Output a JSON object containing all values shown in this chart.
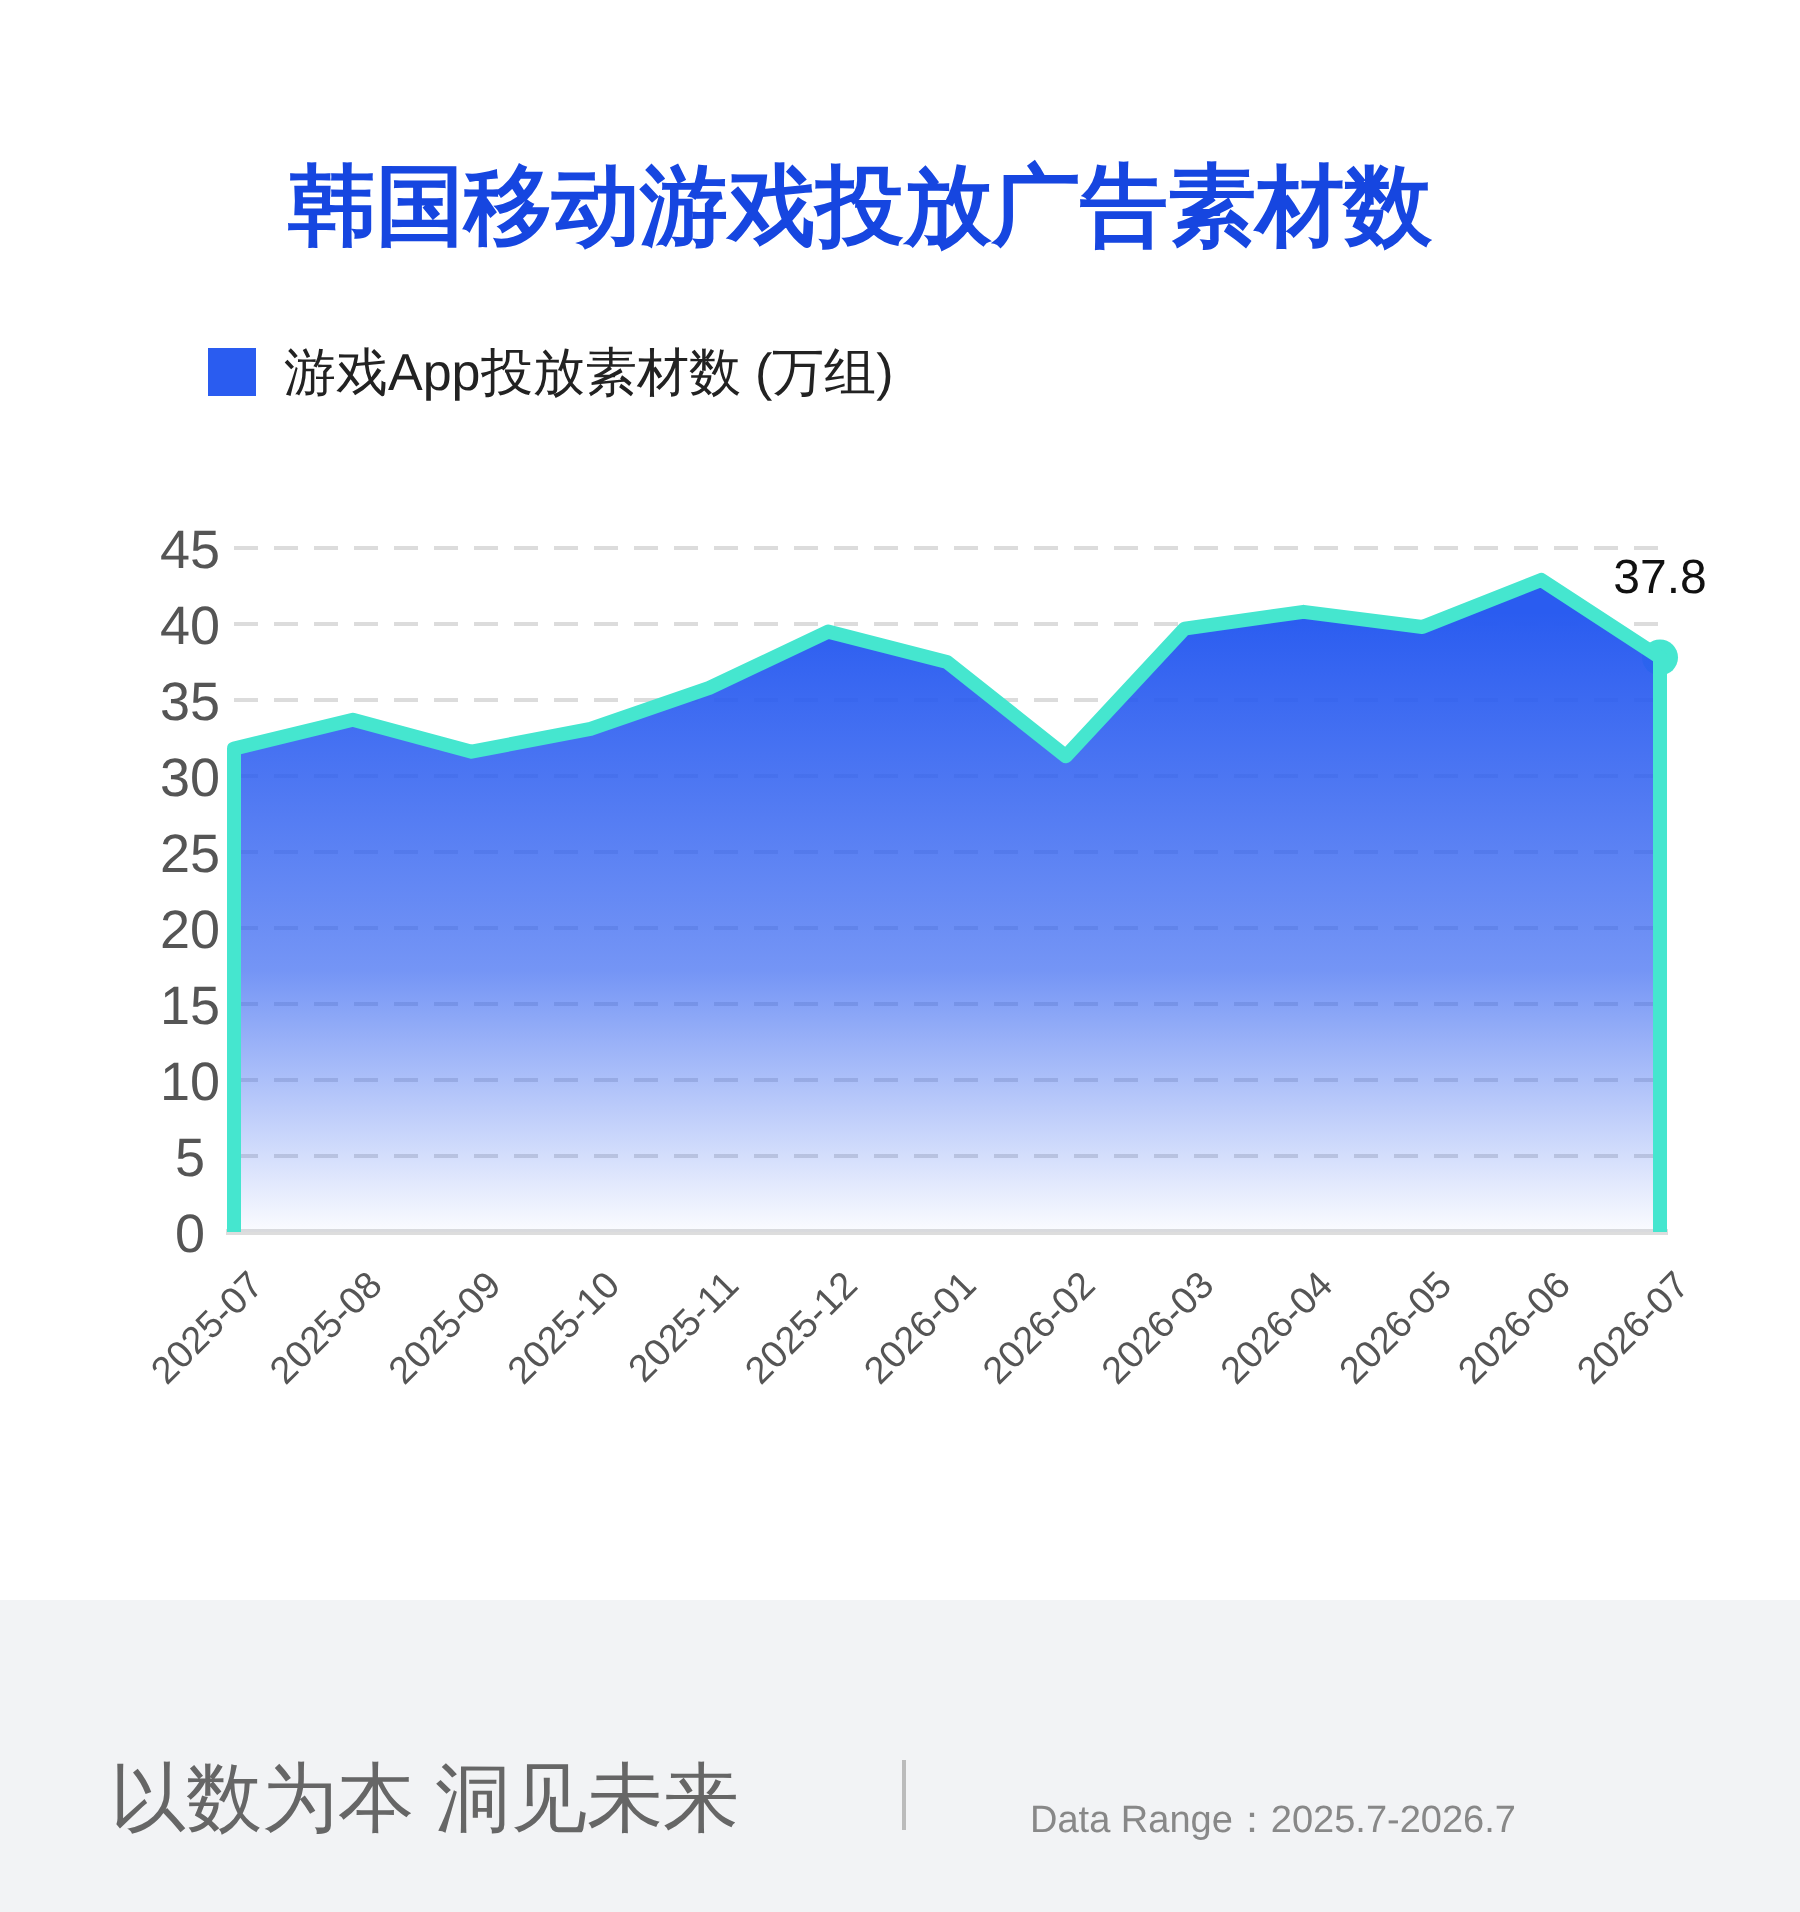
{
  "chart_data": {
    "type": "area",
    "title": "韩国移动游戏投放广告素材数",
    "categories": [
      "2025-07",
      "2025-08",
      "2025-09",
      "2025-10",
      "2025-11",
      "2025-12",
      "2026-01",
      "2026-02",
      "2026-03",
      "2026-04",
      "2026-05",
      "2026-06",
      "2026-07"
    ],
    "series": [
      {
        "name": "游戏App投放素材数 (万组)",
        "color": "#2a5cf0",
        "values": [
          31.8,
          33.7,
          31.6,
          33.1,
          35.8,
          39.5,
          37.5,
          31.3,
          39.7,
          40.8,
          39.8,
          42.9,
          37.8
        ],
        "value_labels": [
          null,
          null,
          null,
          null,
          null,
          null,
          null,
          null,
          null,
          null,
          null,
          null,
          "37.8"
        ]
      }
    ],
    "ylim": [
      0,
      45
    ],
    "yticks": [
      0,
      5,
      10,
      15,
      20,
      25,
      30,
      35,
      40,
      45
    ],
    "grid": "y",
    "legend": "top left",
    "annotations": [
      "以数为本 洞见未来",
      "Data Range：2025.7-2026.7"
    ]
  }
}
